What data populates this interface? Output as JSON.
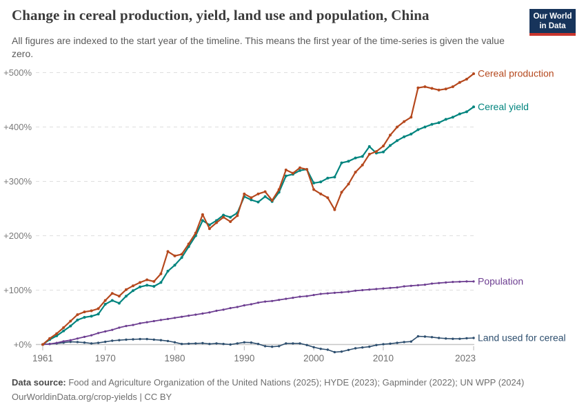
{
  "header": {
    "title": "Change in cereal production, yield, land use and population, China",
    "subtitle": "All figures are indexed to the start year of the timeline. This means the first year of the time-series is given the value zero."
  },
  "logo": {
    "line1": "Our World",
    "line2": "in Data",
    "bg_color": "#17345B",
    "stripe_color": "#C9352D"
  },
  "footer": {
    "source_lead": "Data source:",
    "source_text": " Food and Agriculture Organization of the United Nations (2025); HYDE (2023); Gapminder (2022); UN WPP (2024)",
    "note_text": "OurWorldinData.org/crop-yields | CC BY"
  },
  "chart_data": {
    "type": "line",
    "title": "Change in cereal production, yield, land use and population, China",
    "xlabel": "",
    "ylabel": "",
    "grid": "horizontal-dashed",
    "legend_position": "line-end-labels",
    "ylim": [
      -20,
      510
    ],
    "ytick_values": [
      0,
      100,
      200,
      300,
      400,
      500
    ],
    "ytick_labels": [
      "+0%",
      "+100%",
      "+200%",
      "+300%",
      "+400%",
      "+500%"
    ],
    "xtick_values": [
      1961,
      1970,
      1980,
      1990,
      2000,
      2010,
      2023
    ],
    "x": [
      1961,
      1962,
      1963,
      1964,
      1965,
      1966,
      1967,
      1968,
      1969,
      1970,
      1971,
      1972,
      1973,
      1974,
      1975,
      1976,
      1977,
      1978,
      1979,
      1980,
      1981,
      1982,
      1983,
      1984,
      1985,
      1986,
      1987,
      1988,
      1989,
      1990,
      1991,
      1992,
      1993,
      1994,
      1995,
      1996,
      1997,
      1998,
      1999,
      2000,
      2001,
      2002,
      2003,
      2004,
      2005,
      2006,
      2007,
      2008,
      2009,
      2010,
      2011,
      2012,
      2013,
      2014,
      2015,
      2016,
      2017,
      2018,
      2019,
      2020,
      2021,
      2022,
      2023
    ],
    "series": [
      {
        "name": "land_used_for_cereal",
        "label": "Land used for cereal",
        "color": "#2D4E6E",
        "values": [
          0,
          1,
          2,
          3.5,
          5,
          4.5,
          3.5,
          2,
          3,
          5,
          7,
          8,
          9,
          9.5,
          10,
          10,
          9,
          8,
          6.5,
          4,
          1,
          1.5,
          2,
          2.5,
          1,
          2,
          1,
          0,
          2,
          4,
          3.5,
          1,
          -3,
          -4,
          -3,
          2,
          2,
          2,
          -1,
          -5,
          -8,
          -9.5,
          -14,
          -13,
          -10,
          -7,
          -5.5,
          -4,
          -1,
          0.5,
          1.5,
          3,
          4.5,
          5.5,
          15,
          14.5,
          13.5,
          12,
          11,
          10.5,
          10.5,
          11.5,
          12
        ]
      },
      {
        "name": "population",
        "label": "Population",
        "color": "#6D3E91",
        "values": [
          0,
          1,
          3,
          6,
          8,
          11,
          14,
          17,
          21,
          24,
          27,
          31,
          34,
          36,
          39,
          41,
          43,
          45,
          47,
          49,
          51,
          53,
          55,
          57,
          59,
          62,
          64,
          67,
          69,
          72,
          74,
          77,
          79,
          80,
          82,
          84,
          86,
          88,
          89,
          91,
          93,
          94,
          95,
          96,
          97,
          99,
          100,
          101,
          102,
          103,
          104,
          105,
          107,
          108,
          109,
          110,
          112,
          113,
          114,
          115,
          115.5,
          116,
          116
        ]
      },
      {
        "name": "cereal_yield",
        "label": "Cereal yield",
        "color": "#00847E",
        "values": [
          0,
          9,
          16,
          25,
          34,
          45,
          50,
          52,
          56,
          74,
          81,
          76,
          89,
          99,
          106,
          109,
          107,
          114,
          135,
          146,
          160,
          180,
          200,
          228,
          220,
          228,
          238,
          234,
          242,
          272,
          266,
          262,
          272,
          263,
          280,
          310,
          313,
          320,
          322,
          297,
          299,
          306,
          308,
          334,
          337,
          343,
          346,
          364,
          352,
          354,
          366,
          375,
          382,
          387,
          395,
          400,
          405,
          408,
          414,
          418,
          424,
          428,
          437
        ]
      },
      {
        "name": "cereal_production",
        "label": "Cereal production",
        "color": "#B5481D",
        "values": [
          0,
          11,
          20,
          31,
          43,
          55,
          60,
          62,
          66,
          81,
          94,
          89,
          101,
          108,
          114,
          119,
          116,
          130,
          171,
          163,
          166,
          185,
          205,
          239,
          213,
          224,
          234,
          226,
          237,
          277,
          270,
          277,
          281,
          265,
          285,
          321,
          315,
          325,
          322,
          285,
          277,
          270,
          248,
          280,
          295,
          317,
          330,
          350,
          355,
          365,
          385,
          400,
          410,
          418,
          472,
          474,
          471,
          468,
          470,
          474,
          482,
          488,
          498
        ]
      }
    ]
  }
}
